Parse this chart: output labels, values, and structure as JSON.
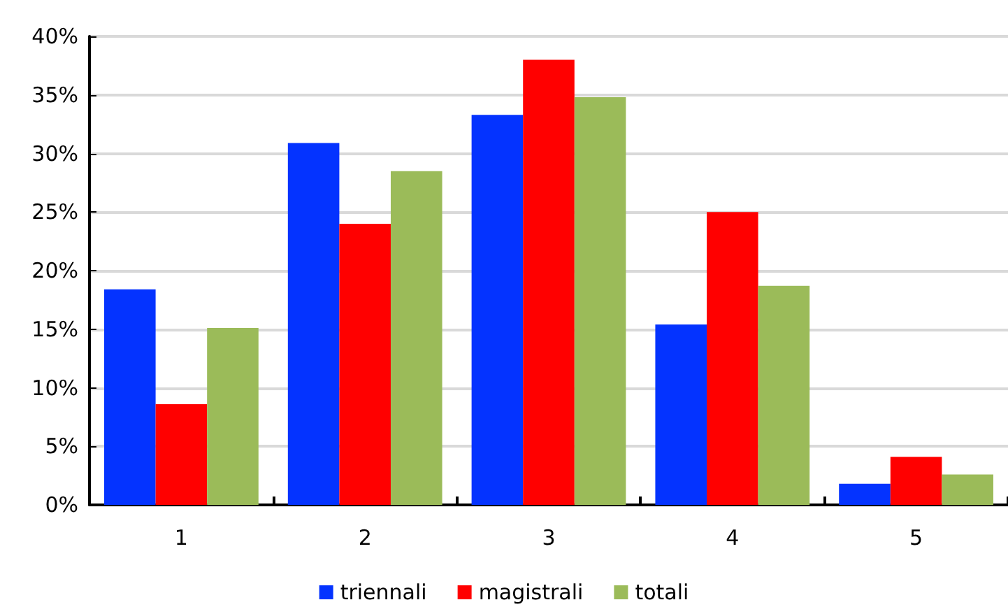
{
  "chart_data": {
    "type": "bar",
    "categories": [
      "1",
      "2",
      "3",
      "4",
      "5"
    ],
    "series": [
      {
        "name": "triennali",
        "color": "#0433ff",
        "values": [
          18.4,
          30.9,
          33.3,
          15.4,
          1.8
        ]
      },
      {
        "name": "magistrali",
        "color": "#ff0000",
        "values": [
          8.6,
          24.0,
          38.0,
          25.0,
          4.1
        ]
      },
      {
        "name": "totali",
        "color": "#9bbb59",
        "values": [
          15.1,
          28.5,
          34.8,
          18.7,
          2.6
        ]
      }
    ],
    "ylim": [
      0,
      40
    ],
    "yticks": [
      {
        "value": 0,
        "label": "0%"
      },
      {
        "value": 5,
        "label": "5%"
      },
      {
        "value": 10,
        "label": "10%"
      },
      {
        "value": 15,
        "label": "15%"
      },
      {
        "value": 20,
        "label": "20%"
      },
      {
        "value": 25,
        "label": "25%"
      },
      {
        "value": 30,
        "label": "30%"
      },
      {
        "value": 35,
        "label": "35%"
      },
      {
        "value": 40,
        "label": "40%"
      }
    ],
    "grid": "y",
    "legend": "bottom"
  }
}
